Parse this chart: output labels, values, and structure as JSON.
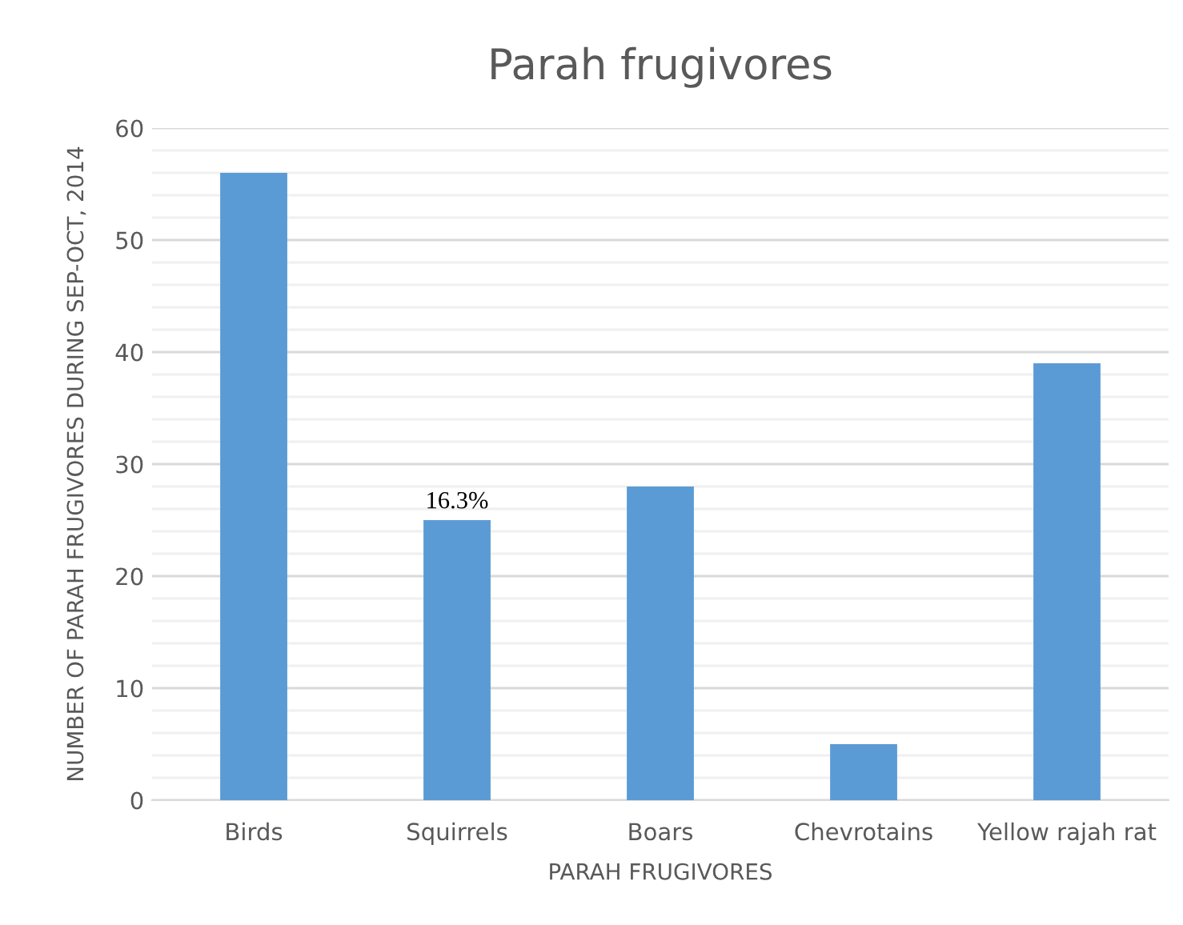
{
  "chart_data": {
    "type": "bar",
    "title": "Parah frugivores",
    "xlabel": "PARAH FRUGIVORES",
    "ylabel": "NUMBER OF PARAH FRUGIVORES DURING SEP-OCT, 2014",
    "categories": [
      "Birds",
      "Squirrels",
      "Boars",
      "Chevrotains",
      "Yellow rajah rat"
    ],
    "values": [
      56,
      25,
      28,
      5,
      39
    ],
    "color": "#5b9bd5",
    "annotations": [
      {
        "text": "16.3%",
        "x": "Squirrels",
        "y": 25
      }
    ],
    "ylim": [
      0,
      60
    ],
    "yticks": [
      0,
      {
        "value": 2,
        "label": null
      },
      {
        "value": 4,
        "label": null
      },
      {
        "value": 6,
        "label": null
      },
      {
        "value": 8,
        "label": null
      },
      10,
      {
        "value": 12,
        "label": null
      },
      {
        "value": 14,
        "label": null
      },
      {
        "value": 16,
        "label": null
      },
      {
        "value": 18,
        "label": null
      },
      20,
      {
        "value": 22,
        "label": null
      },
      {
        "value": 24,
        "label": null
      },
      {
        "value": 26,
        "label": null
      },
      {
        "value": 28,
        "label": null
      },
      30,
      {
        "value": 32,
        "label": null
      },
      {
        "value": 34,
        "label": null
      },
      {
        "value": 36,
        "label": null
      },
      {
        "value": 38,
        "label": null
      },
      40,
      {
        "value": 42,
        "label": null
      },
      {
        "value": 44,
        "label": null
      },
      {
        "value": 46,
        "label": null
      },
      {
        "value": 48,
        "label": null
      },
      50,
      {
        "value": 52,
        "label": null
      },
      {
        "value": 54,
        "label": null
      },
      {
        "value": 56,
        "label": null
      },
      {
        "value": 58,
        "label": null
      },
      60
    ],
    "grid": "y"
  }
}
